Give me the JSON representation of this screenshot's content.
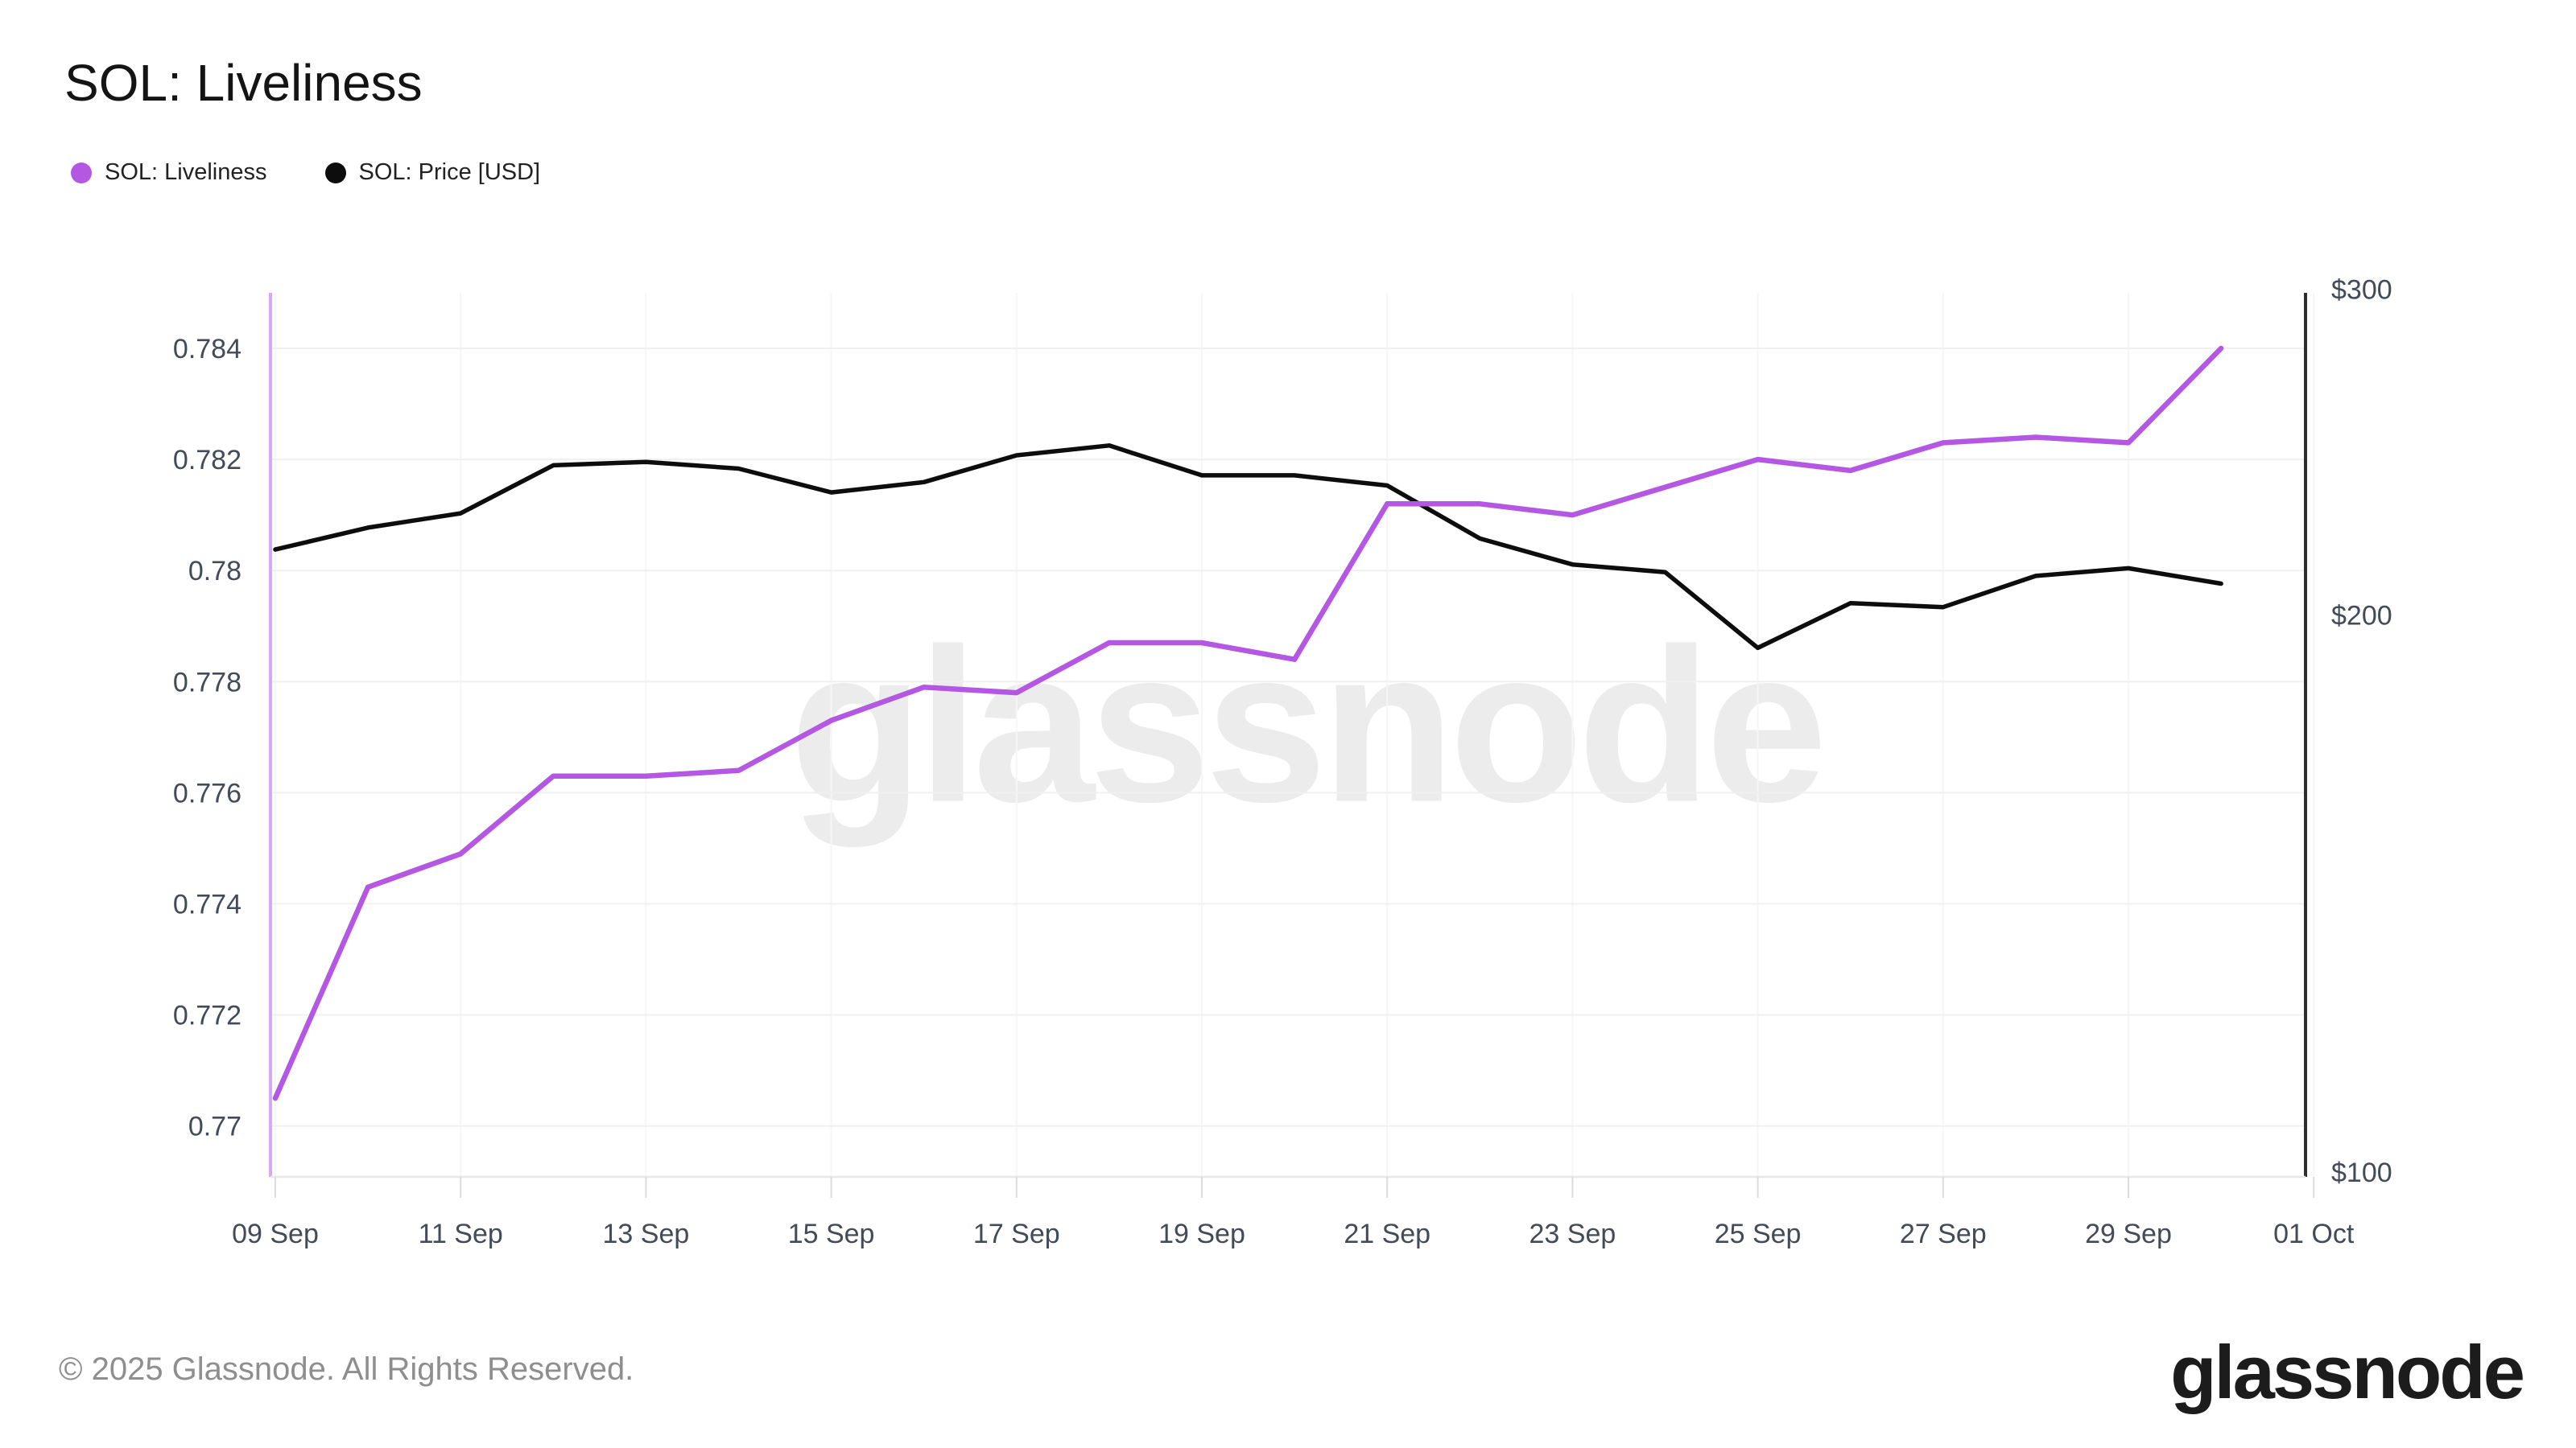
{
  "header": {
    "title": "SOL: Liveliness"
  },
  "legend": [
    {
      "label": "SOL: Liveliness",
      "color": "#b457e2",
      "icon": "legend-dot"
    },
    {
      "label": "SOL: Price [USD]",
      "color": "#0d0d0d",
      "icon": "legend-dot"
    }
  ],
  "watermark": "glassnode",
  "footer": {
    "copyright": "© 2025 Glassnode. All Rights Reserved.",
    "brand": "glassnode"
  },
  "chart_data": {
    "type": "line",
    "title": "SOL: Liveliness",
    "x": [
      "Sep 09",
      "Sep 10",
      "Sep 11",
      "Sep 12",
      "Sep 13",
      "Sep 14",
      "Sep 15",
      "Sep 16",
      "Sep 17",
      "Sep 18",
      "Sep 19",
      "Sep 20",
      "Sep 21",
      "Sep 22",
      "Sep 23",
      "Sep 24",
      "Sep 25",
      "Sep 26",
      "Sep 27",
      "Sep 28",
      "Sep 29",
      "Sep 30"
    ],
    "series": [
      {
        "name": "SOL: Liveliness",
        "axis": "left",
        "color": "#b457e2",
        "values": [
          0.7705,
          0.7743,
          0.7749,
          0.7763,
          0.7763,
          0.7764,
          0.7773,
          0.7779,
          0.7778,
          0.7787,
          0.7787,
          0.7784,
          0.7812,
          0.7812,
          0.781,
          0.7815,
          0.782,
          0.7818,
          0.7823,
          0.7824,
          0.7823,
          0.784
        ]
      },
      {
        "name": "SOL: Price [USD]",
        "axis": "right",
        "color": "#0d0d0d",
        "values": [
          217,
          223,
          227,
          241,
          242,
          240,
          233,
          236,
          244,
          247,
          238,
          238,
          235,
          220,
          213,
          211,
          192,
          203,
          202,
          210,
          212,
          208
        ]
      }
    ],
    "x_ticks": [
      "09 Sep",
      "11 Sep",
      "13 Sep",
      "15 Sep",
      "17 Sep",
      "19 Sep",
      "21 Sep",
      "23 Sep",
      "25 Sep",
      "27 Sep",
      "29 Sep",
      "01 Oct"
    ],
    "left_axis": {
      "scale": "linear",
      "range": [
        0.769,
        0.7851
      ],
      "ticks": [
        0.784,
        0.782,
        0.78,
        0.778,
        0.776,
        0.774,
        0.772,
        0.77
      ],
      "labels": [
        "0.784",
        "0.782",
        "0.78",
        "0.778",
        "0.776",
        "0.774",
        "0.772",
        "0.77"
      ]
    },
    "right_axis": {
      "scale": "log",
      "range": [
        100,
        305
      ],
      "ticks": [
        300,
        200,
        100
      ],
      "labels": [
        "$300",
        "$200",
        "$100"
      ]
    },
    "grid": true,
    "legend_position": "top-left"
  }
}
